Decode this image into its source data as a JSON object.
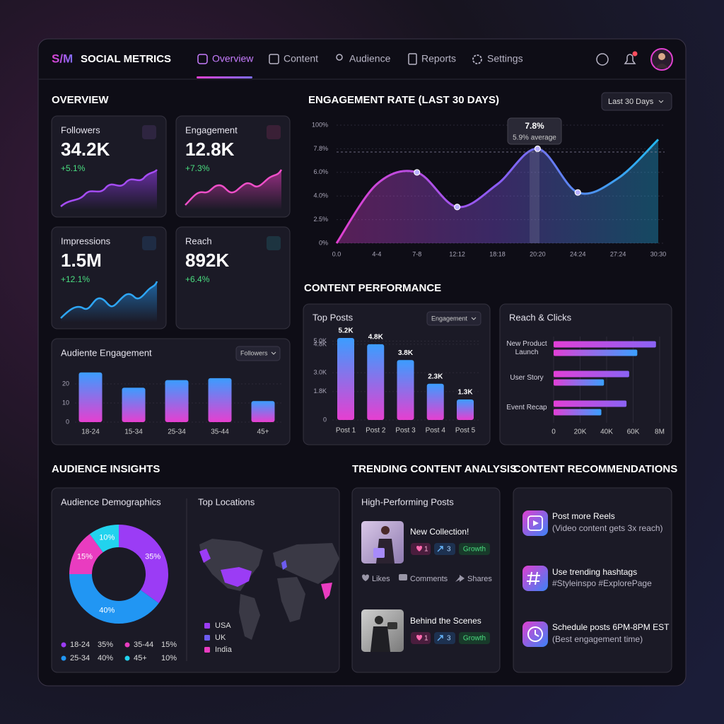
{
  "header": {
    "logo": "S/M",
    "brand": "SOCIAL METRICS",
    "nav": [
      "Overview",
      "Content",
      "Audience",
      "Reports",
      "Settings"
    ]
  },
  "overview": {
    "title": "OVERVIEW",
    "cards": [
      {
        "label": "Followers",
        "value": "34.2K",
        "change": "+5.1%"
      },
      {
        "label": "Engagement",
        "value": "12.8K",
        "change": "+7.3%"
      },
      {
        "label": "Impressions",
        "value": "1.5M",
        "change": "+12.1%"
      },
      {
        "label": "Reach",
        "value": "892K",
        "change": "+6.4%"
      }
    ],
    "audience_engagement": {
      "type": "bar",
      "title": "Audiente Engagement",
      "filter": "Followers",
      "categories": [
        "18-24",
        "15-34",
        "25-34",
        "35-44",
        "45+"
      ],
      "values": [
        26,
        18,
        22,
        23,
        11
      ],
      "colors": [
        "#3b9dff",
        "#e63fd0"
      ],
      "ylim": [
        0,
        30
      ],
      "yticks": [
        0,
        10,
        20
      ]
    }
  },
  "engagement_rate": {
    "type": "line",
    "title": "ENGAGEMENT RATE (LAST 30 DAYS)",
    "filter": "Last 30 Days",
    "categories": [
      "0.0",
      "4-4",
      "7-8",
      "12:12",
      "18:18",
      "20:20",
      "24:24",
      "27:24",
      "30:30"
    ],
    "values": [
      0,
      5.0,
      6.0,
      3.3,
      5.0,
      7.8,
      4.3,
      5.5,
      44
    ],
    "colors": [
      "#e040d0",
      "#8b5cf6",
      "#22b8f0"
    ],
    "yticks": [
      {
        "value": 0,
        "label": "0%"
      },
      {
        "value": 2.5,
        "label": "2.5%"
      },
      {
        "value": 4,
        "label": "4.0%"
      },
      {
        "value": 6,
        "label": "6.0%"
      },
      {
        "value": 7.8,
        "label": "7.8%"
      },
      {
        "value": 100,
        "label": "100%"
      }
    ],
    "tooltip": {
      "value": "7.8%",
      "note": "5.9% average"
    }
  },
  "content_performance": {
    "title": "CONTENT PERFORMANCE",
    "top_posts": {
      "type": "bar",
      "title": "Top Posts",
      "filter": "Engagement",
      "categories": [
        "Post 1",
        "Post 2",
        "Post 3",
        "Post 4",
        "Post 5"
      ],
      "values": [
        5200,
        4800,
        3800,
        2300,
        1300
      ],
      "value_labels": [
        "5.2K",
        "4.8K",
        "3.8K",
        "2.3K",
        "1.3K"
      ],
      "colors": [
        "#3b9dff",
        "#e63fd0"
      ],
      "ylim": [
        0,
        5200
      ],
      "yticks": [
        0,
        {
          "value": 1800,
          "label": "1.8K"
        },
        {
          "value": 3000,
          "label": "3.0K"
        },
        {
          "value": 4800,
          "label": "4.8K"
        },
        {
          "value": 5000,
          "label": "5.0K"
        }
      ]
    },
    "reach_clicks": {
      "type": "hbar",
      "title": "Reach & Clicks",
      "categories": [
        "New Product Launch",
        "User Story",
        "Event Recap"
      ],
      "series": [
        {
          "colors": [
            "#e23fd6",
            "#8a63f5"
          ],
          "values": [
            6900000,
            57000,
            55000
          ]
        },
        {
          "colors": [
            "#e23fd6",
            "#3aa0ff"
          ],
          "values": [
            1300000,
            38000,
            36000
          ]
        }
      ],
      "xticks": [
        0,
        {
          "value": 20000,
          "label": "20K"
        },
        {
          "value": 40000,
          "label": "40K"
        },
        {
          "value": 60000,
          "label": "60K"
        },
        {
          "value": 8000000,
          "label": "8M"
        }
      ]
    }
  },
  "audience_insights": {
    "title": "AUDIENCE INSIGHTS",
    "demographics": {
      "type": "pie",
      "title": "Audience Demographics",
      "categories": [
        "18-24",
        "25-34",
        "35-44",
        "45+"
      ],
      "values": [
        35,
        40,
        15,
        10
      ],
      "value_labels": [
        "35%",
        "40%",
        "15%",
        "10%"
      ],
      "colors": [
        "#9b3cf5",
        "#2196f3",
        "#e93cc0",
        "#22d3ee"
      ]
    },
    "locations": {
      "title": "Top Locations",
      "items": [
        {
          "name": "USA",
          "color": "#9b3cf5"
        },
        {
          "name": "UK",
          "color": "#6d5cf0"
        },
        {
          "name": "India",
          "color": "#e93cc0"
        }
      ]
    }
  },
  "trending": {
    "title": "TRENDING CONTENT ANALYSIS",
    "card_title": "High-Performing Posts",
    "posts": [
      {
        "title": "New Collection!",
        "likes": 1,
        "shares": 3,
        "tag": "Growth"
      },
      {
        "title": "Behind the Scenes",
        "likes": 1,
        "shares": 3,
        "tag": "Growth"
      }
    ],
    "actions": [
      "Likes",
      "Comments",
      "Shares"
    ]
  },
  "recommendations": {
    "title": "CONTENT RECOMMENDATIONS",
    "items": [
      {
        "title": "Post more Reels",
        "detail": "(Video content gets 3x reach)"
      },
      {
        "title": "Use trending hashtags",
        "detail": "#Styleinspo #ExplorePage"
      },
      {
        "title": "Schedule posts 6PM-8PM EST",
        "detail": "(Best engagement time)"
      }
    ]
  }
}
